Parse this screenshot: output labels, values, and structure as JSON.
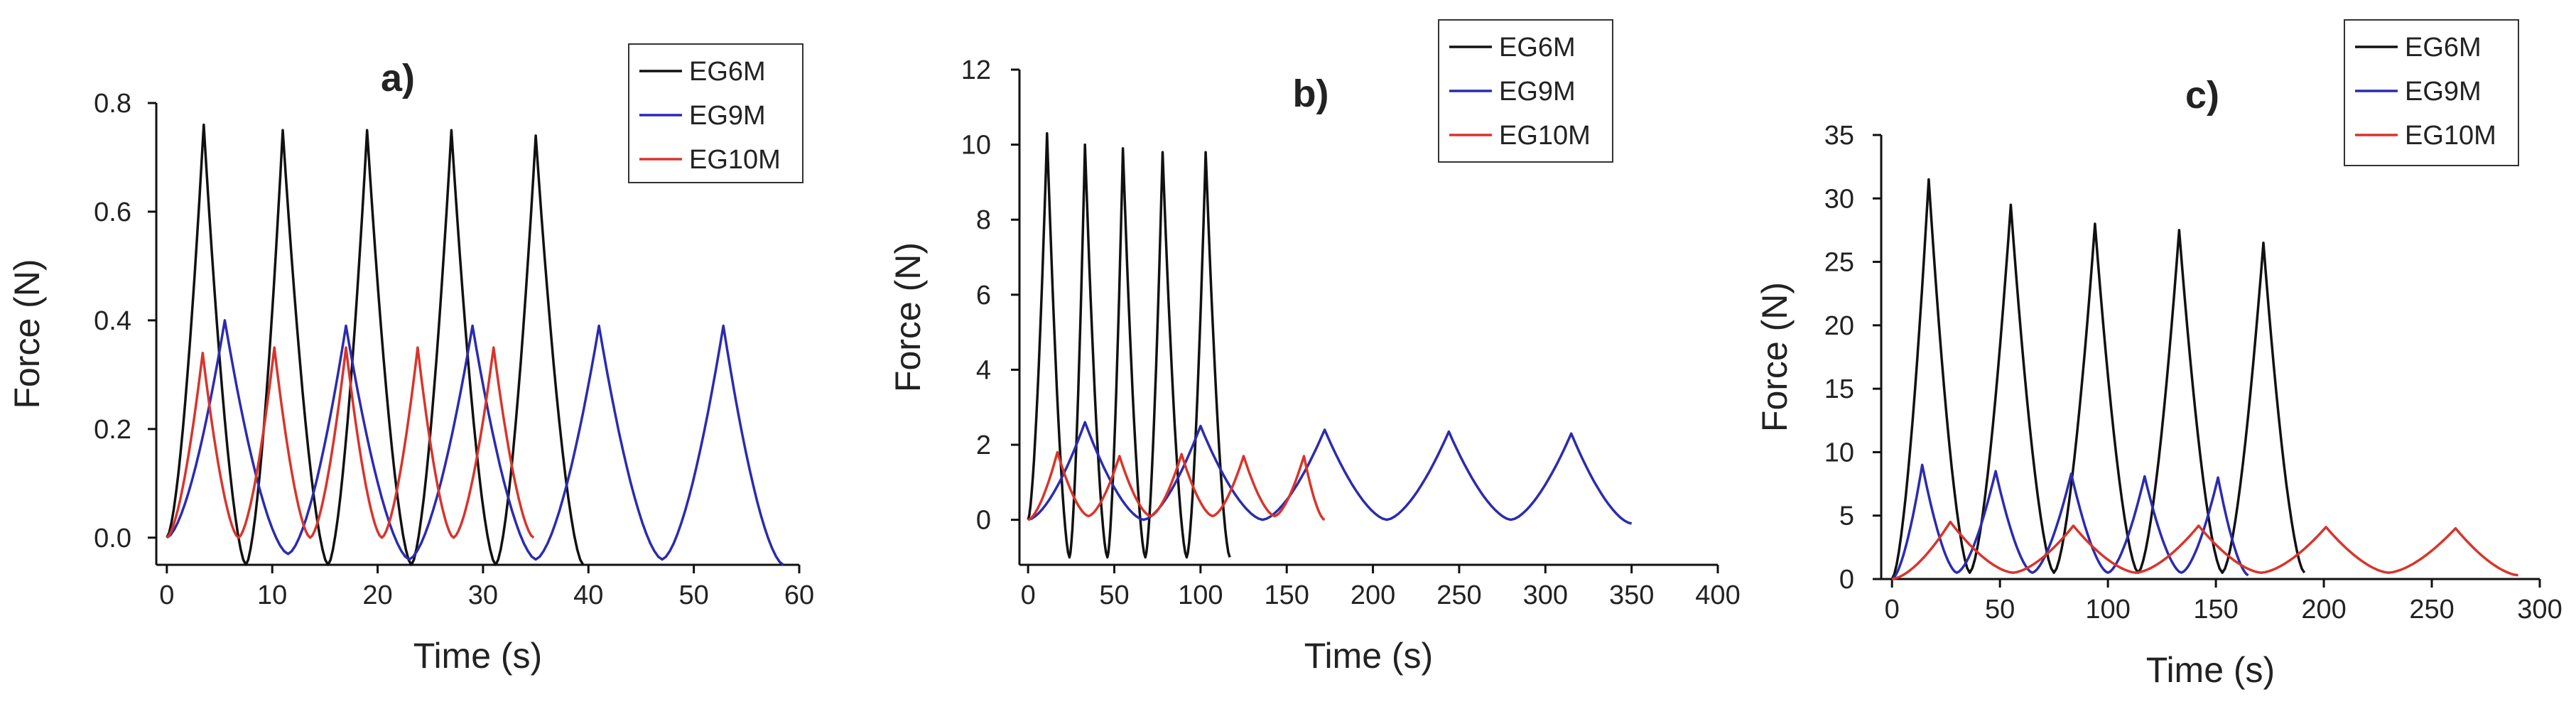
{
  "series_colors": {
    "EG6M": "#111111",
    "EG9M": "#2b2bb0",
    "EG10M": "#d9342b"
  },
  "chart_data": [
    {
      "type": "line",
      "title": "a)",
      "xlabel": "Time (s)",
      "ylabel": "Force (N)",
      "xlim": [
        -1,
        60
      ],
      "ylim": [
        -0.05,
        0.8
      ],
      "xticks": [
        0,
        10,
        20,
        30,
        40,
        50,
        60
      ],
      "xtick_labels": [
        "0",
        "10",
        "20",
        "30",
        "40",
        "50",
        "60"
      ],
      "yticks": [
        0.0,
        0.2,
        0.4,
        0.6,
        0.8
      ],
      "ytick_labels": [
        "0.0",
        "0.2",
        "0.4",
        "0.6",
        "0.8"
      ],
      "legend": [
        "EG6M",
        "EG9M",
        "EG10M"
      ],
      "series": [
        {
          "name": "EG6M",
          "type": "sawtooth",
          "start": [
            0,
            0
          ],
          "cycles": [
            {
              "peak": [
                3.5,
                0.76
              ],
              "valley": [
                7.5,
                -0.05
              ]
            },
            {
              "peak": [
                11.0,
                0.75
              ],
              "valley": [
                15.3,
                -0.05
              ]
            },
            {
              "peak": [
                19.0,
                0.75
              ],
              "valley": [
                23.2,
                -0.05
              ]
            },
            {
              "peak": [
                27.0,
                0.75
              ],
              "valley": [
                31.2,
                -0.05
              ]
            },
            {
              "peak": [
                35.0,
                0.74
              ],
              "valley": [
                39.5,
                -0.05
              ]
            }
          ]
        },
        {
          "name": "EG9M",
          "type": "sawtooth",
          "start": [
            0,
            0
          ],
          "cycles": [
            {
              "peak": [
                5.5,
                0.4
              ],
              "valley": [
                11.5,
                -0.03
              ]
            },
            {
              "peak": [
                17.0,
                0.39
              ],
              "valley": [
                23.0,
                -0.04
              ]
            },
            {
              "peak": [
                29.0,
                0.39
              ],
              "valley": [
                35.0,
                -0.04
              ]
            },
            {
              "peak": [
                41.0,
                0.39
              ],
              "valley": [
                47.0,
                -0.04
              ]
            },
            {
              "peak": [
                52.8,
                0.39
              ],
              "valley": [
                58.5,
                -0.05
              ]
            }
          ]
        },
        {
          "name": "EG10M",
          "type": "sawtooth",
          "start": [
            0,
            0
          ],
          "cycles": [
            {
              "peak": [
                3.4,
                0.34
              ],
              "valley": [
                6.8,
                0.0
              ]
            },
            {
              "peak": [
                10.2,
                0.35
              ],
              "valley": [
                13.6,
                0.0
              ]
            },
            {
              "peak": [
                17.0,
                0.35
              ],
              "valley": [
                20.4,
                0.0
              ]
            },
            {
              "peak": [
                23.8,
                0.35
              ],
              "valley": [
                27.2,
                0.0
              ]
            },
            {
              "peak": [
                31.0,
                0.35
              ],
              "valley": [
                34.8,
                0.0
              ]
            }
          ]
        }
      ]
    },
    {
      "type": "line",
      "title": "b)",
      "xlabel": "Time (s)",
      "ylabel": "Force (N)",
      "xlim": [
        -5,
        400
      ],
      "ylim": [
        -1.2,
        12
      ],
      "xticks": [
        0,
        50,
        100,
        150,
        200,
        250,
        300,
        350,
        400
      ],
      "xtick_labels": [
        "0",
        "50",
        "100",
        "150",
        "200",
        "250",
        "300",
        "350",
        "400"
      ],
      "yticks": [
        0,
        2,
        4,
        6,
        8,
        10,
        12
      ],
      "ytick_labels": [
        "0",
        "2",
        "4",
        "6",
        "8",
        "10",
        "12"
      ],
      "legend": [
        "EG6M",
        "EG9M",
        "EG10M"
      ],
      "series": [
        {
          "name": "EG6M",
          "type": "sawtooth",
          "start": [
            0,
            0
          ],
          "cycles": [
            {
              "peak": [
                11,
                10.3
              ],
              "valley": [
                24,
                -1.0
              ]
            },
            {
              "peak": [
                33,
                10.0
              ],
              "valley": [
                46,
                -1.0
              ]
            },
            {
              "peak": [
                55,
                9.9
              ],
              "valley": [
                68,
                -1.0
              ]
            },
            {
              "peak": [
                78,
                9.8
              ],
              "valley": [
                92,
                -1.0
              ]
            },
            {
              "peak": [
                103,
                9.8
              ],
              "valley": [
                117,
                -1.0
              ]
            }
          ]
        },
        {
          "name": "EG9M",
          "type": "sawtooth",
          "start": [
            0,
            0
          ],
          "cycles": [
            {
              "peak": [
                33,
                2.6
              ],
              "valley": [
                67,
                0.0
              ]
            },
            {
              "peak": [
                100,
                2.5
              ],
              "valley": [
                136,
                0.0
              ]
            },
            {
              "peak": [
                172,
                2.4
              ],
              "valley": [
                208,
                0.0
              ]
            },
            {
              "peak": [
                244,
                2.35
              ],
              "valley": [
                280,
                0.0
              ]
            },
            {
              "peak": [
                315,
                2.3
              ],
              "valley": [
                350,
                -0.1
              ]
            }
          ]
        },
        {
          "name": "EG10M",
          "type": "sawtooth",
          "start": [
            0,
            0
          ],
          "cycles": [
            {
              "peak": [
                17,
                1.8
              ],
              "valley": [
                35,
                0.1
              ]
            },
            {
              "peak": [
                53,
                1.7
              ],
              "valley": [
                71,
                0.1
              ]
            },
            {
              "peak": [
                89,
                1.75
              ],
              "valley": [
                107,
                0.1
              ]
            },
            {
              "peak": [
                125,
                1.7
              ],
              "valley": [
                143,
                0.1
              ]
            },
            {
              "peak": [
                160,
                1.7
              ],
              "valley": [
                172,
                0.0
              ]
            }
          ]
        }
      ]
    },
    {
      "type": "line",
      "title": "c)",
      "xlabel": "Time (s)",
      "ylabel": "Force (N)",
      "xlim": [
        -5,
        300
      ],
      "ylim": [
        0,
        35
      ],
      "xticks": [
        0,
        50,
        100,
        150,
        200,
        250,
        300
      ],
      "xtick_labels": [
        "0",
        "50",
        "100",
        "150",
        "200",
        "250",
        "300"
      ],
      "yticks": [
        0,
        5,
        10,
        15,
        20,
        25,
        30,
        35
      ],
      "ytick_labels": [
        "0",
        "5",
        "10",
        "15",
        "20",
        "25",
        "30",
        "35"
      ],
      "legend": [
        "EG6M",
        "EG9M",
        "EG10M"
      ],
      "series": [
        {
          "name": "EG6M",
          "type": "sawtooth",
          "start": [
            0,
            0
          ],
          "cycles": [
            {
              "peak": [
                17,
                31.5
              ],
              "valley": [
                36,
                0.5
              ]
            },
            {
              "peak": [
                55,
                29.5
              ],
              "valley": [
                75,
                0.5
              ]
            },
            {
              "peak": [
                94,
                28.0
              ],
              "valley": [
                114,
                0.5
              ]
            },
            {
              "peak": [
                133,
                27.5
              ],
              "valley": [
                153,
                0.5
              ]
            },
            {
              "peak": [
                172,
                26.5
              ],
              "valley": [
                191,
                0.5
              ]
            }
          ]
        },
        {
          "name": "EG9M",
          "type": "sawtooth",
          "start": [
            0,
            0
          ],
          "cycles": [
            {
              "peak": [
                14,
                9.0
              ],
              "valley": [
                30,
                0.5
              ]
            },
            {
              "peak": [
                48,
                8.5
              ],
              "valley": [
                65,
                0.5
              ]
            },
            {
              "peak": [
                83,
                8.3
              ],
              "valley": [
                100,
                0.5
              ]
            },
            {
              "peak": [
                117,
                8.1
              ],
              "valley": [
                134,
                0.5
              ]
            },
            {
              "peak": [
                151,
                8.0
              ],
              "valley": [
                165,
                0.3
              ]
            }
          ]
        },
        {
          "name": "EG10M",
          "type": "sawtooth",
          "start": [
            0,
            0
          ],
          "cycles": [
            {
              "peak": [
                27,
                4.5
              ],
              "valley": [
                56,
                0.5
              ]
            },
            {
              "peak": [
                84,
                4.2
              ],
              "valley": [
                113,
                0.5
              ]
            },
            {
              "peak": [
                142,
                4.2
              ],
              "valley": [
                171,
                0.5
              ]
            },
            {
              "peak": [
                201,
                4.1
              ],
              "valley": [
                230,
                0.5
              ]
            },
            {
              "peak": [
                261,
                4.0
              ],
              "valley": [
                290,
                0.3
              ]
            }
          ]
        }
      ]
    }
  ]
}
